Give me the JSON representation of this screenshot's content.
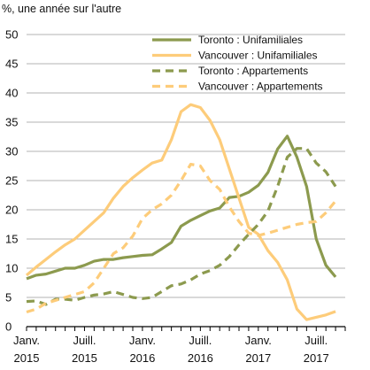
{
  "chart_data": {
    "type": "line",
    "ylabel": "%, une année sur l'autre",
    "ylim": [
      0,
      50
    ],
    "yticks": [
      0,
      5,
      10,
      15,
      20,
      25,
      30,
      35,
      40,
      45,
      50
    ],
    "xlim": [
      "2015-01",
      "2017-10"
    ],
    "xtick_labels": [
      {
        "x": "2015-01",
        "line1": "Janv.",
        "line2": "2015"
      },
      {
        "x": "2015-07",
        "line1": "Juill.",
        "line2": "2015"
      },
      {
        "x": "2016-01",
        "line1": "Janv.",
        "line2": "2016"
      },
      {
        "x": "2016-07",
        "line1": "Juill.",
        "line2": "2016"
      },
      {
        "x": "2017-01",
        "line1": "Janv.",
        "line2": "2017"
      },
      {
        "x": "2017-07",
        "line1": "Juill.",
        "line2": "2017"
      }
    ],
    "grid": "horizontal",
    "legend_position": "top-right",
    "series": [
      {
        "name": "Toronto : Unifamiliales",
        "color": "#8c9a4e",
        "style": "solid",
        "points": [
          [
            "2015-01",
            8.2
          ],
          [
            "2015-02",
            8.8
          ],
          [
            "2015-03",
            9.0
          ],
          [
            "2015-04",
            9.5
          ],
          [
            "2015-05",
            10.0
          ],
          [
            "2015-06",
            10.0
          ],
          [
            "2015-07",
            10.5
          ],
          [
            "2015-08",
            11.2
          ],
          [
            "2015-09",
            11.5
          ],
          [
            "2015-10",
            11.5
          ],
          [
            "2015-11",
            11.8
          ],
          [
            "2015-12",
            12.0
          ],
          [
            "2016-01",
            12.2
          ],
          [
            "2016-02",
            12.3
          ],
          [
            "2016-03",
            13.3
          ],
          [
            "2016-04",
            14.4
          ],
          [
            "2016-05",
            17.2
          ],
          [
            "2016-06",
            18.2
          ],
          [
            "2016-07",
            19.0
          ],
          [
            "2016-08",
            19.8
          ],
          [
            "2016-09",
            20.3
          ],
          [
            "2016-10",
            22.1
          ],
          [
            "2016-11",
            22.3
          ],
          [
            "2016-12",
            23.0
          ],
          [
            "2017-01",
            24.2
          ],
          [
            "2017-02",
            26.4
          ],
          [
            "2017-03",
            30.4
          ],
          [
            "2017-04",
            32.6
          ],
          [
            "2017-05",
            29.0
          ],
          [
            "2017-06",
            24.0
          ],
          [
            "2017-07",
            15.0
          ],
          [
            "2017-08",
            10.5
          ],
          [
            "2017-09",
            8.5
          ]
        ]
      },
      {
        "name": "Vancouver : Unifamiliales",
        "color": "#fdcc7a",
        "style": "solid",
        "points": [
          [
            "2015-01",
            8.8
          ],
          [
            "2015-02",
            10.2
          ],
          [
            "2015-03",
            11.5
          ],
          [
            "2015-04",
            12.8
          ],
          [
            "2015-05",
            14.0
          ],
          [
            "2015-06",
            15.0
          ],
          [
            "2015-07",
            16.5
          ],
          [
            "2015-08",
            18.0
          ],
          [
            "2015-09",
            19.5
          ],
          [
            "2015-10",
            22.0
          ],
          [
            "2015-11",
            24.0
          ],
          [
            "2015-12",
            25.5
          ],
          [
            "2016-01",
            26.8
          ],
          [
            "2016-02",
            28.0
          ],
          [
            "2016-03",
            28.5
          ],
          [
            "2016-04",
            32.0
          ],
          [
            "2016-05",
            36.8
          ],
          [
            "2016-06",
            38.0
          ],
          [
            "2016-07",
            37.5
          ],
          [
            "2016-08",
            35.3
          ],
          [
            "2016-09",
            32.0
          ],
          [
            "2016-10",
            27.0
          ],
          [
            "2016-11",
            22.0
          ],
          [
            "2016-12",
            17.0
          ],
          [
            "2017-01",
            15.8
          ],
          [
            "2017-02",
            13.0
          ],
          [
            "2017-03",
            11.0
          ],
          [
            "2017-04",
            8.0
          ],
          [
            "2017-05",
            3.0
          ],
          [
            "2017-06",
            1.2
          ],
          [
            "2017-07",
            1.6
          ],
          [
            "2017-08",
            2.0
          ],
          [
            "2017-09",
            2.6
          ]
        ]
      },
      {
        "name": "Toronto : Appartements",
        "color": "#8c9a4e",
        "style": "dashed",
        "points": [
          [
            "2015-01",
            4.3
          ],
          [
            "2015-02",
            4.4
          ],
          [
            "2015-03",
            3.8
          ],
          [
            "2015-04",
            4.7
          ],
          [
            "2015-05",
            4.7
          ],
          [
            "2015-06",
            4.5
          ],
          [
            "2015-07",
            5.0
          ],
          [
            "2015-08",
            5.4
          ],
          [
            "2015-09",
            5.6
          ],
          [
            "2015-10",
            6.0
          ],
          [
            "2015-11",
            5.5
          ],
          [
            "2015-12",
            5.0
          ],
          [
            "2016-01",
            4.8
          ],
          [
            "2016-02",
            5.0
          ],
          [
            "2016-03",
            6.0
          ],
          [
            "2016-04",
            7.0
          ],
          [
            "2016-05",
            7.3
          ],
          [
            "2016-06",
            8.0
          ],
          [
            "2016-07",
            9.0
          ],
          [
            "2016-08",
            9.6
          ],
          [
            "2016-09",
            10.5
          ],
          [
            "2016-10",
            12.0
          ],
          [
            "2016-11",
            14.0
          ],
          [
            "2016-12",
            15.8
          ],
          [
            "2017-01",
            17.5
          ],
          [
            "2017-02",
            19.8
          ],
          [
            "2017-03",
            24.0
          ],
          [
            "2017-04",
            29.0
          ],
          [
            "2017-05",
            30.5
          ],
          [
            "2017-06",
            30.5
          ],
          [
            "2017-07",
            28.0
          ],
          [
            "2017-08",
            26.5
          ],
          [
            "2017-09",
            24.0
          ]
        ]
      },
      {
        "name": "Vancouver : Appartements",
        "color": "#fdcc7a",
        "style": "dashed",
        "points": [
          [
            "2015-01",
            2.5
          ],
          [
            "2015-02",
            3.0
          ],
          [
            "2015-03",
            4.0
          ],
          [
            "2015-04",
            4.5
          ],
          [
            "2015-05",
            5.0
          ],
          [
            "2015-06",
            5.5
          ],
          [
            "2015-07",
            6.0
          ],
          [
            "2015-08",
            7.5
          ],
          [
            "2015-09",
            10.0
          ],
          [
            "2015-10",
            12.5
          ],
          [
            "2015-11",
            13.5
          ],
          [
            "2015-12",
            15.5
          ],
          [
            "2016-01",
            18.5
          ],
          [
            "2016-02",
            20.0
          ],
          [
            "2016-03",
            21.0
          ],
          [
            "2016-04",
            22.5
          ],
          [
            "2016-05",
            25.0
          ],
          [
            "2016-06",
            27.8
          ],
          [
            "2016-07",
            27.5
          ],
          [
            "2016-08",
            25.0
          ],
          [
            "2016-09",
            23.5
          ],
          [
            "2016-10",
            20.5
          ],
          [
            "2016-11",
            18.0
          ],
          [
            "2016-12",
            16.0
          ],
          [
            "2017-01",
            15.6
          ],
          [
            "2017-02",
            16.0
          ],
          [
            "2017-03",
            16.5
          ],
          [
            "2017-04",
            17.0
          ],
          [
            "2017-05",
            17.5
          ],
          [
            "2017-06",
            17.8
          ],
          [
            "2017-07",
            18.0
          ],
          [
            "2017-08",
            19.5
          ],
          [
            "2017-09",
            21.5
          ]
        ]
      }
    ]
  }
}
